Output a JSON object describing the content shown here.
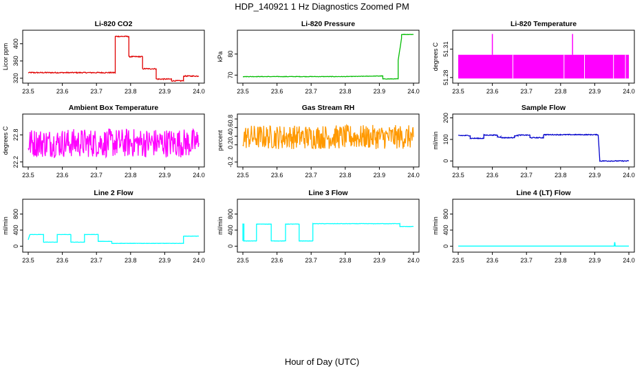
{
  "page": {
    "title": "HDP_140921  1 Hz Diagnostics Zoomed PM",
    "xlabel": "Hour of Day (UTC)"
  },
  "chart_data": [
    {
      "type": "line",
      "title": "Li-820 CO2",
      "ylabel": "Licor ppm",
      "color": "#e00000",
      "xlim": [
        23.5,
        24.0
      ],
      "ylim": [
        315,
        425
      ],
      "xticks": [
        "23.5",
        "23.6",
        "23.7",
        "23.8",
        "23.9",
        "24.0"
      ],
      "yticks": [
        320,
        360,
        400
      ],
      "x": [
        23.5,
        23.755,
        23.755,
        23.795,
        23.795,
        23.835,
        23.835,
        23.875,
        23.875,
        23.92,
        23.92,
        23.955,
        23.955,
        24.0
      ],
      "y": [
        333,
        333,
        417,
        417,
        370,
        370,
        342,
        342,
        318,
        318,
        314,
        314,
        325,
        325
      ],
      "noise": 1.2
    },
    {
      "type": "line",
      "title": "Li-820 Pressure",
      "ylabel": "kPa",
      "color": "#00bb00",
      "xlim": [
        23.5,
        24.0
      ],
      "ylim": [
        67.5,
        90
      ],
      "xticks": [
        "23.5",
        "23.6",
        "23.7",
        "23.8",
        "23.9",
        "24.0"
      ],
      "yticks": [
        70,
        80
      ],
      "x": [
        23.5,
        23.8,
        23.91,
        23.91,
        23.955,
        23.955,
        23.965,
        23.965,
        24.0
      ],
      "y": [
        69.3,
        69.3,
        69.6,
        68.2,
        68.2,
        77,
        87.5,
        89.3,
        89.3
      ],
      "noise": 0.1
    },
    {
      "type": "line",
      "title": "Li-820 Temperature",
      "ylabel": "degrees C",
      "color": "#ff00ff",
      "xlim": [
        23.5,
        24.0
      ],
      "ylim": [
        51.277,
        51.327
      ],
      "xticks": [
        "23.5",
        "23.6",
        "23.7",
        "23.8",
        "23.9",
        "24.0"
      ],
      "yticks": [
        "51.28",
        "51.31"
      ],
      "band": [
        51.279,
        51.304
      ],
      "spikes": [
        {
          "x": 23.6,
          "y": 51.326
        },
        {
          "x": 23.835,
          "y": 51.326
        }
      ],
      "x": [
        23.5,
        24.0
      ],
      "y": [
        51.291,
        51.291
      ]
    },
    {
      "type": "line",
      "title": "Ambient Box Temperature",
      "ylabel": "degrees C",
      "color": "#ff00ff",
      "xlim": [
        23.5,
        24.0
      ],
      "ylim": [
        22.15,
        23.2
      ],
      "xticks": [
        "23.5",
        "23.6",
        "23.7",
        "23.8",
        "23.9",
        "24.0"
      ],
      "yticks": [
        "22.2",
        "22.8"
      ],
      "x": [
        23.5,
        24.0
      ],
      "y": [
        22.62,
        22.62
      ],
      "noise": 0.32
    },
    {
      "type": "line",
      "title": "Gas Stream RH",
      "ylabel": "percent",
      "color": "#ff9900",
      "xlim": [
        23.5,
        24.0
      ],
      "ylim": [
        -0.25,
        0.85
      ],
      "xticks": [
        "23.5",
        "23.6",
        "23.7",
        "23.8",
        "23.9",
        "24.0"
      ],
      "yticks": [
        "-0.2",
        "0.2",
        "0.4",
        "0.6",
        "0.8"
      ],
      "x": [
        23.5,
        24.0
      ],
      "y": [
        0.38,
        0.38
      ],
      "noise": 0.28
    },
    {
      "type": "line",
      "title": "Sample Flow",
      "ylabel": "ml/min",
      "color": "#0000cc",
      "xlim": [
        23.5,
        24.0
      ],
      "ylim": [
        -15,
        205
      ],
      "xticks": [
        "23.5",
        "23.6",
        "23.7",
        "23.8",
        "23.9",
        "24.0"
      ],
      "yticks": [
        0,
        100,
        200
      ],
      "x": [
        23.5,
        23.535,
        23.535,
        23.575,
        23.575,
        23.615,
        23.615,
        23.625,
        23.625,
        23.665,
        23.665,
        23.675,
        23.675,
        23.71,
        23.71,
        23.75,
        23.75,
        23.91,
        23.915,
        23.925,
        24.0
      ],
      "y": [
        118,
        118,
        105,
        105,
        120,
        120,
        112,
        112,
        108,
        108,
        118,
        118,
        120,
        120,
        108,
        108,
        122,
        122,
        0,
        0,
        0
      ],
      "noise": 2
    },
    {
      "type": "line",
      "title": "Line 2 Flow",
      "ylabel": "ml/min",
      "color": "#00ffff",
      "xlim": [
        23.5,
        24.0
      ],
      "ylim": [
        -80,
        1100
      ],
      "xticks": [
        "23.5",
        "23.6",
        "23.7",
        "23.8",
        "23.9",
        "24.0"
      ],
      "yticks": [
        0,
        400,
        800
      ],
      "x": [
        23.5,
        23.505,
        23.545,
        23.545,
        23.585,
        23.585,
        23.625,
        23.625,
        23.665,
        23.665,
        23.705,
        23.705,
        23.745,
        23.745,
        23.955,
        23.955,
        24.0
      ],
      "y": [
        160,
        290,
        290,
        100,
        100,
        290,
        290,
        100,
        100,
        290,
        290,
        120,
        120,
        70,
        70,
        250,
        250
      ],
      "noise": 3
    },
    {
      "type": "line",
      "title": "Line 3 Flow",
      "ylabel": "ml/min",
      "color": "#00ffff",
      "xlim": [
        23.5,
        24.0
      ],
      "ylim": [
        -80,
        1100
      ],
      "xticks": [
        "23.5",
        "23.6",
        "23.7",
        "23.8",
        "23.9",
        "24.0"
      ],
      "yticks": [
        0,
        400,
        800
      ],
      "x": [
        23.5,
        23.5,
        23.503,
        23.503,
        23.54,
        23.54,
        23.583,
        23.583,
        23.625,
        23.625,
        23.665,
        23.665,
        23.705,
        23.705,
        23.96,
        23.96,
        24.0
      ],
      "y": [
        130,
        550,
        550,
        130,
        130,
        550,
        550,
        130,
        130,
        550,
        550,
        130,
        130,
        560,
        560,
        490,
        490
      ],
      "noise": 4
    },
    {
      "type": "line",
      "title": "Line 4 (LT) Flow",
      "ylabel": "ml/min",
      "color": "#00ffff",
      "xlim": [
        23.5,
        24.0
      ],
      "ylim": [
        -80,
        1100
      ],
      "xticks": [
        "23.5",
        "23.6",
        "23.7",
        "23.8",
        "23.9",
        "24.0"
      ],
      "yticks": [
        0,
        400,
        800
      ],
      "x": [
        23.5,
        23.957,
        23.958,
        23.959,
        23.96,
        24.0
      ],
      "y": [
        2,
        2,
        90,
        90,
        2,
        2
      ],
      "noise": 0
    }
  ]
}
